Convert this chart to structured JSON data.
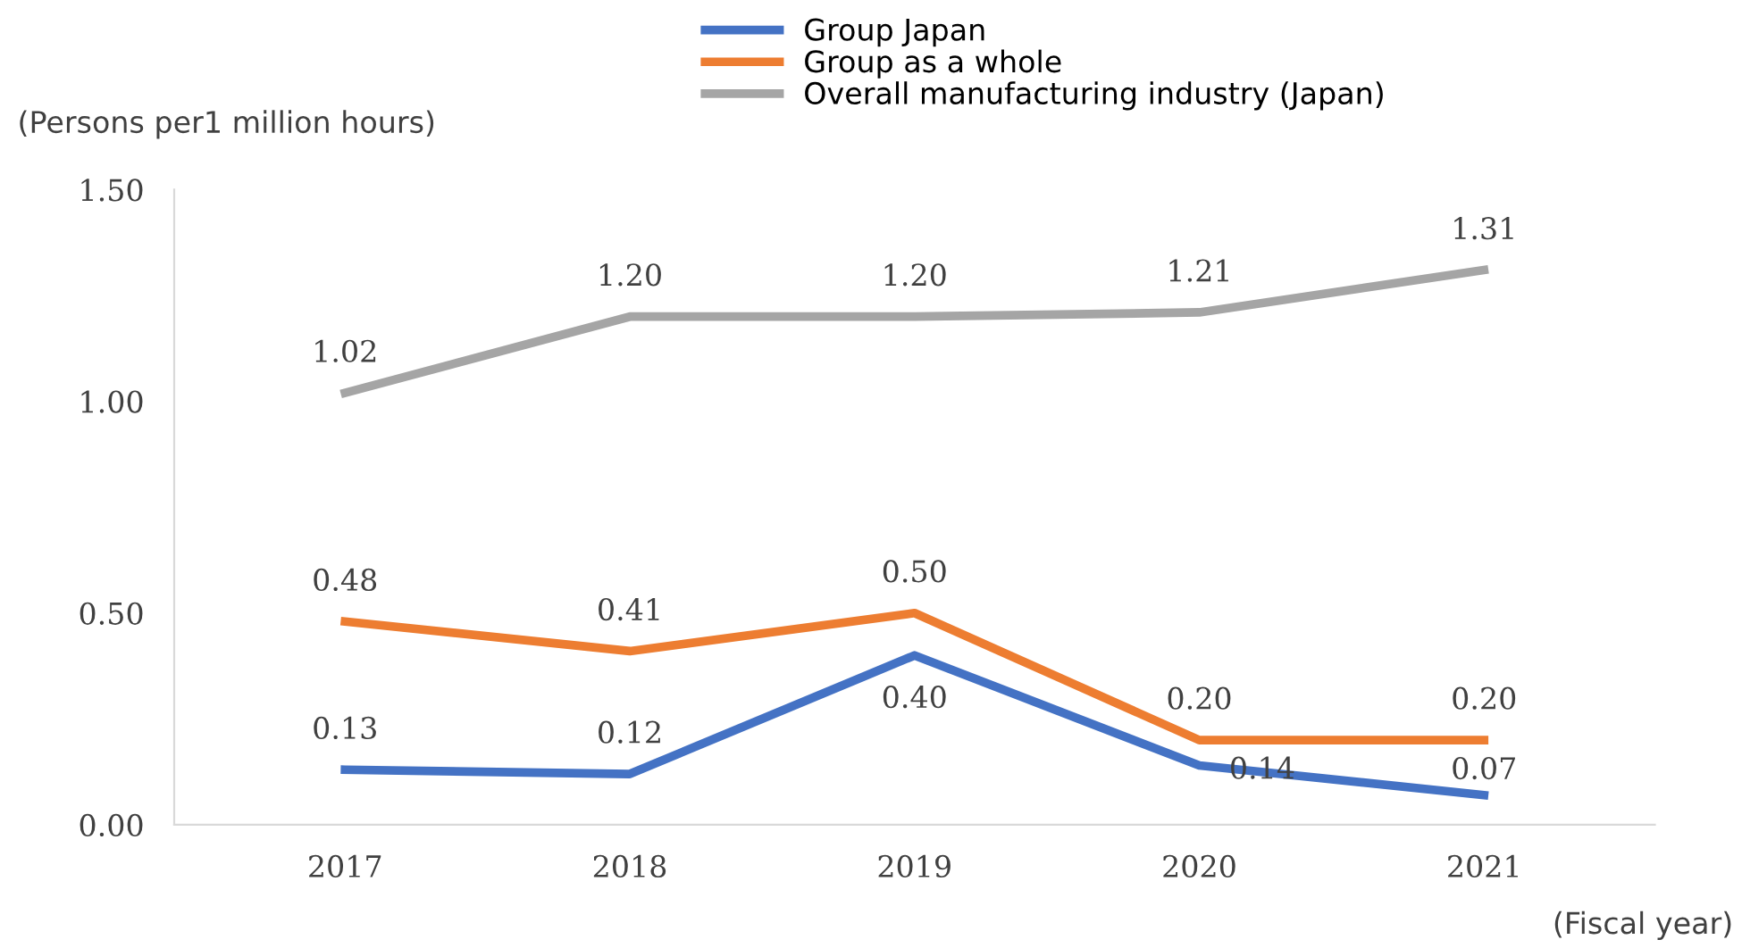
{
  "chart_data": {
    "type": "line",
    "ylabel": "(Persons per1 million hours)",
    "xlabel": "(Fiscal year)",
    "categories": [
      "2017",
      "2018",
      "2019",
      "2020",
      "2021"
    ],
    "series": [
      {
        "name": "Group Japan",
        "color": "#4472c4",
        "values": [
          0.13,
          0.12,
          0.4,
          0.14,
          0.07
        ],
        "value_labels": [
          "0.13",
          "0.12",
          "0.40",
          "0.14",
          "0.07"
        ]
      },
      {
        "name": "Group as a whole",
        "color": "#ed7d31",
        "values": [
          0.48,
          0.41,
          0.5,
          0.2,
          0.2
        ],
        "value_labels": [
          "0.48",
          "0.41",
          "0.50",
          "0.20",
          "0.20"
        ]
      },
      {
        "name": "Overall manufacturing industry (Japan)",
        "color": "#a5a5a5",
        "values": [
          1.02,
          1.2,
          1.2,
          1.21,
          1.31
        ],
        "value_labels": [
          "1.02",
          "1.20",
          "1.20",
          "1.21",
          "1.31"
        ]
      }
    ],
    "ylim": [
      0,
      1.5
    ],
    "yticks": [
      {
        "value": 0,
        "label": "0.00"
      },
      {
        "value": 0.5,
        "label": "0.50"
      },
      {
        "value": 1,
        "label": "1.00"
      },
      {
        "value": 1.5,
        "label": "1.50"
      }
    ],
    "legend": "top",
    "grid": false,
    "marker": "none",
    "line_style": "solid"
  }
}
